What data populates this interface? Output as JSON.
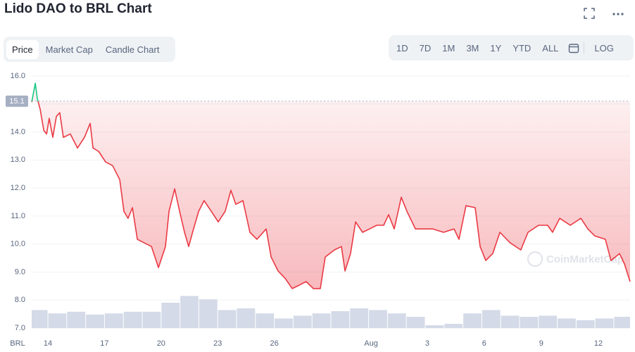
{
  "header": {
    "title": "Lido DAO to BRL Chart",
    "tabs": [
      "Price",
      "Market Cap",
      "Candle Chart"
    ],
    "ranges": [
      "1D",
      "7D",
      "1M",
      "3M",
      "1Y",
      "YTD",
      "ALL"
    ],
    "log_button": "LOG"
  },
  "chart_data": {
    "type": "line",
    "watermark": "CoinMarketCap",
    "y_unit": "BRL",
    "xlim": [
      -0.86,
      30.86
    ],
    "xticks": [
      {
        "value": 0,
        "label": "14"
      },
      {
        "value": 3,
        "label": "17"
      },
      {
        "value": 6,
        "label": "20"
      },
      {
        "value": 9,
        "label": "23"
      },
      {
        "value": 12,
        "label": "26"
      },
      {
        "value": 17.13,
        "label": "Aug"
      },
      {
        "value": 20.11,
        "label": "3"
      },
      {
        "value": 23.13,
        "label": "6"
      },
      {
        "value": 26.15,
        "label": "9"
      },
      {
        "value": 29.18,
        "label": "12"
      }
    ],
    "ylim": [
      7,
      16
    ],
    "yticks": [
      {
        "value": 7,
        "label": "7.0"
      },
      {
        "value": 8,
        "label": "8.0"
      },
      {
        "value": 9,
        "label": "9.0"
      },
      {
        "value": 10,
        "label": "10.0"
      },
      {
        "value": 11,
        "label": "11.0"
      },
      {
        "value": 12,
        "label": "12.0"
      },
      {
        "value": 13,
        "label": "13.0"
      },
      {
        "value": 14,
        "label": "14.0"
      },
      {
        "value": 15,
        "label": "15.0"
      },
      {
        "value": 16,
        "label": "16.0"
      }
    ],
    "grid": true,
    "reference_line": 15.1,
    "up_color": "#16c784",
    "down_color": "#ea3943",
    "x": [
      -0.86,
      -0.75,
      -0.67,
      -0.56,
      -0.41,
      -0.22,
      -0.07,
      0.07,
      0.26,
      0.45,
      0.63,
      0.82,
      1.19,
      1.57,
      1.94,
      2.24,
      2.39,
      2.69,
      3.06,
      3.43,
      3.81,
      4.03,
      4.25,
      4.48,
      4.74,
      5.11,
      5.49,
      5.86,
      6.23,
      6.42,
      6.72,
      6.98,
      7.24,
      7.46,
      7.72,
      7.99,
      8.28,
      8.66,
      9.03,
      9.4,
      9.7,
      9.96,
      10.34,
      10.71,
      11.08,
      11.57,
      11.83,
      12.2,
      12.57,
      12.95,
      13.32,
      13.69,
      14.07,
      14.44,
      14.7,
      15.19,
      15.56,
      15.75,
      16.04,
      16.31,
      16.68,
      17.05,
      17.43,
      17.8,
      18.06,
      18.36,
      18.73,
      19.03,
      19.48,
      19.85,
      20.41,
      20.97,
      21.53,
      21.79,
      22.16,
      22.65,
      22.91,
      23.21,
      23.58,
      23.96,
      24.51,
      25.07,
      25.45,
      26.01,
      26.49,
      26.75,
      27.13,
      27.69,
      28.25,
      28.62,
      28.99,
      29.55,
      29.85,
      30.3,
      30.56,
      30.86
    ],
    "values": [
      15.07,
      15.44,
      15.74,
      15.19,
      14.81,
      14.06,
      13.93,
      14.49,
      13.81,
      14.56,
      14.69,
      13.81,
      13.93,
      13.43,
      13.81,
      14.31,
      13.43,
      13.31,
      12.93,
      12.8,
      12.3,
      11.17,
      10.92,
      11.3,
      10.17,
      10.04,
      9.91,
      9.16,
      9.91,
      11.17,
      11.97,
      11.17,
      10.42,
      9.91,
      10.54,
      11.17,
      11.55,
      11.17,
      10.79,
      11.17,
      11.92,
      11.42,
      11.55,
      10.42,
      10.17,
      10.54,
      9.54,
      9.04,
      8.78,
      8.41,
      8.53,
      8.66,
      8.41,
      8.41,
      9.54,
      9.79,
      9.91,
      9.04,
      9.66,
      10.79,
      10.42,
      10.54,
      10.67,
      10.67,
      11.05,
      10.54,
      11.67,
      11.17,
      10.54,
      10.54,
      10.54,
      10.42,
      10.54,
      10.17,
      11.37,
      11.3,
      9.91,
      9.41,
      9.66,
      10.42,
      10.04,
      9.79,
      10.42,
      10.67,
      10.67,
      10.42,
      10.92,
      10.67,
      10.92,
      10.54,
      10.29,
      10.17,
      9.41,
      9.66,
      9.29,
      8.66
    ],
    "volume": {
      "color": "#cfd6e4",
      "y2lim": [
        0,
        100
      ],
      "x": [
        -0.5,
        0.5,
        1.5,
        2.5,
        3.5,
        4.5,
        5.5,
        6.5,
        7.5,
        8.5,
        9.5,
        10.5,
        11.5,
        12.5,
        13.5,
        14.5,
        15.5,
        16.5,
        17.5,
        18.5,
        19.5,
        20.5,
        21.5,
        22.5,
        23.5,
        24.5,
        25.5,
        26.5,
        27.5,
        28.5,
        29.5,
        30.5
      ],
      "values": [
        32,
        26,
        29,
        24,
        26,
        29,
        29,
        45,
        57,
        51,
        32,
        35,
        26,
        17,
        22,
        26,
        30,
        35,
        32,
        26,
        20,
        5,
        7.5,
        26,
        32,
        22,
        20,
        22,
        17,
        14,
        17,
        20
      ]
    }
  }
}
